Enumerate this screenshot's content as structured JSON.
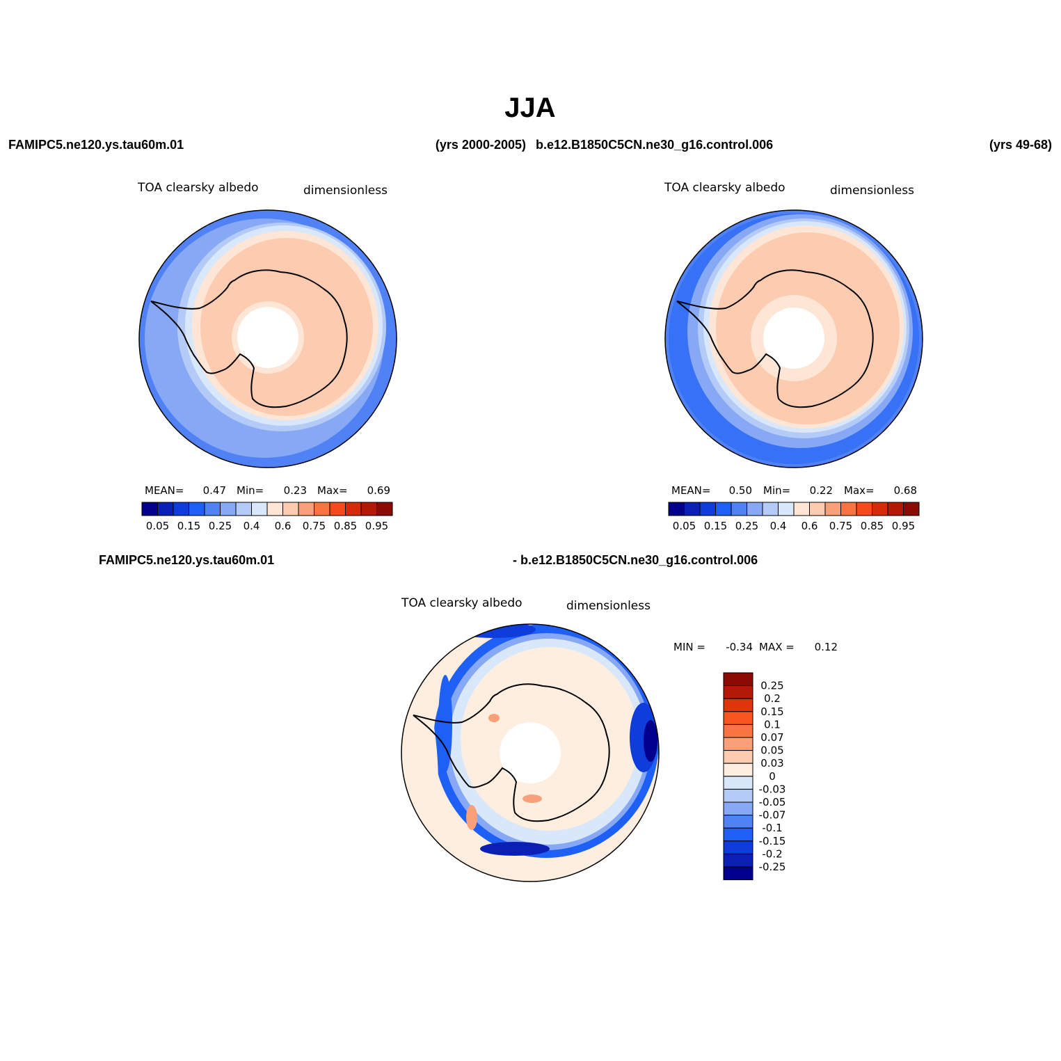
{
  "page": {
    "title": "JJA",
    "case_a": "FAMIPC5.ne120.ys.tau60m.01",
    "case_a_years": "(yrs 2000-2005)",
    "case_b": "b.e12.B1850C5CN.ne30_g16.control.006",
    "case_b_years": "(yrs 49-68)",
    "diff_left": "FAMIPC5.ne120.ys.tau60m.01",
    "diff_right": "- b.e12.B1850C5CN.ne30_g16.control.006"
  },
  "panels": [
    {
      "variable": "TOA clearsky albedo",
      "units": "dimensionless",
      "mean_label": "MEAN=",
      "mean": "0.47",
      "min_label": "Min=",
      "min": "0.23",
      "max_label": "Max=",
      "max": "0.69"
    },
    {
      "variable": "TOA clearsky albedo",
      "units": "dimensionless",
      "mean_label": "MEAN=",
      "mean": "0.50",
      "min_label": "Min=",
      "min": "0.22",
      "max_label": "Max=",
      "max": "0.68"
    },
    {
      "variable": "TOA clearsky albedo",
      "units": "dimensionless",
      "min_label": "MIN =",
      "min": "-0.34",
      "max_label": "MAX =",
      "max": "0.12"
    }
  ],
  "colorbar_abs": {
    "colors": [
      "#00008c",
      "#0a1fb4",
      "#0f3ddc",
      "#1e5ff5",
      "#5082f5",
      "#86a8f5",
      "#b4cbf8",
      "#d8e7fa",
      "#fde6d6",
      "#fdcbb0",
      "#f9a07a",
      "#f87440",
      "#f44a1d",
      "#d42c0a",
      "#b31a06",
      "#8a0a04"
    ],
    "labels": [
      "0.05",
      "0.15",
      "0.25",
      "0.4",
      "0.6",
      "0.75",
      "0.85",
      "0.95"
    ]
  },
  "colorbar_diff": {
    "colors": [
      "#8a0a04",
      "#b31a06",
      "#e0350a",
      "#f85520",
      "#f87440",
      "#f9a07a",
      "#fdcbb0",
      "#fdeedf",
      "#d8e7fa",
      "#b4cbf8",
      "#86a8f5",
      "#5082f5",
      "#1e5ff5",
      "#0f3ddc",
      "#0a1fb4",
      "#00008c"
    ],
    "labels": [
      "0.25",
      "0.2",
      "0.15",
      "0.1",
      "0.07",
      "0.05",
      "0.03",
      "0",
      "-0.03",
      "-0.05",
      "-0.07",
      "-0.1",
      "-0.15",
      "-0.2",
      "-0.25"
    ]
  }
}
